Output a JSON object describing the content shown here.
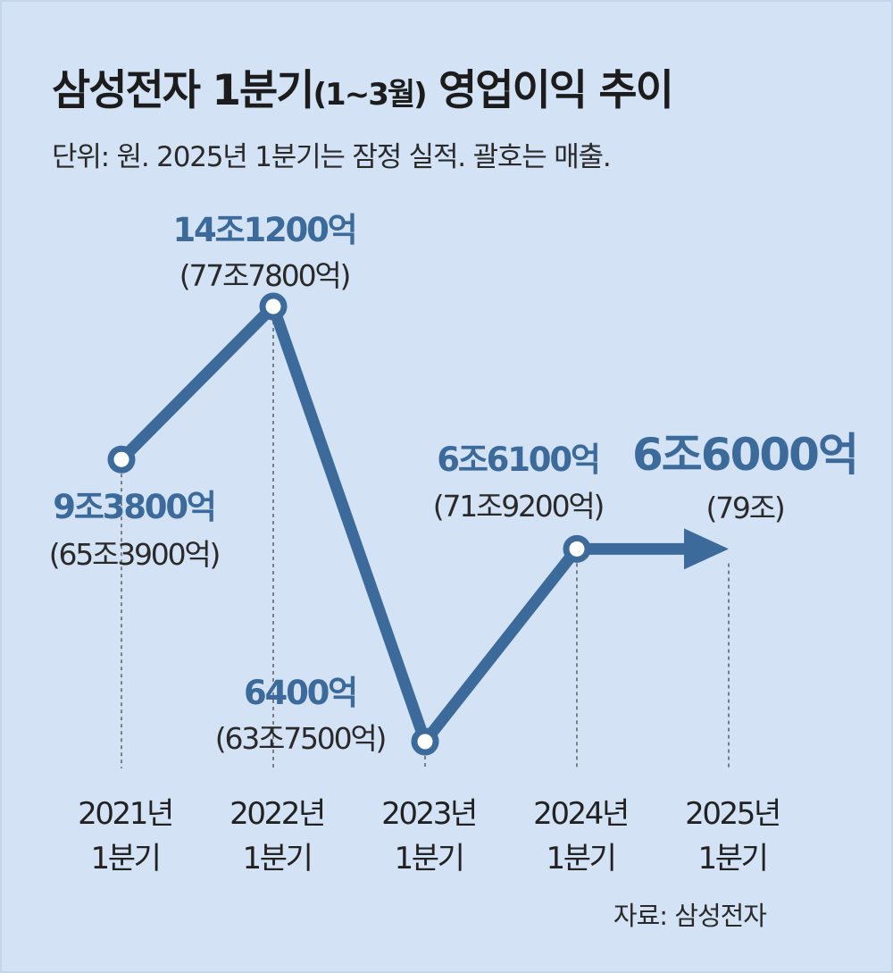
{
  "header": {
    "title_main": "삼성전자 1분기",
    "title_paren": "(1~3월)",
    "title_tail": " 영업이익 추이",
    "subtitle": "단위: 원. 2025년 1분기는 잠정 실적. 괄호는 매출."
  },
  "source": "자료: 삼성전자",
  "chart_data": {
    "type": "line",
    "title": "삼성전자 1분기(1~3월) 영업이익 추이",
    "subtitle": "단위: 원. 2025년 1분기는 잠정 실적. 괄호는 매출.",
    "x": [
      "2021년 1분기",
      "2022년 1분기",
      "2023년 1분기",
      "2024년 1분기",
      "2025년 1분기"
    ],
    "x_labels": [
      [
        "2021년",
        "1분기"
      ],
      [
        "2022년",
        "1분기"
      ],
      [
        "2023년",
        "1분기"
      ],
      [
        "2024년",
        "1분기"
      ],
      [
        "2025년",
        "1분기"
      ]
    ],
    "series": [
      {
        "values_eok": [
          93800,
          141200,
          6400,
          66100,
          66000
        ],
        "value_labels": [
          "9조3800억",
          "14조1200억",
          "6400억",
          "6조6100억",
          "6조6000억"
        ],
        "revenue_labels": [
          "(65조3900억)",
          "(77조7800억)",
          "(63조7500억)",
          "(71조9200억)",
          "(79조)"
        ]
      }
    ],
    "last_point_preliminary": true,
    "grid": false,
    "legend": "none",
    "colors": {
      "line": "#3b6a9b",
      "value_label": "#3b6a9b",
      "highlight_label": "#3b6a9b",
      "revenue_label": "#2a2a2a",
      "background": "#d3e3f5"
    }
  }
}
